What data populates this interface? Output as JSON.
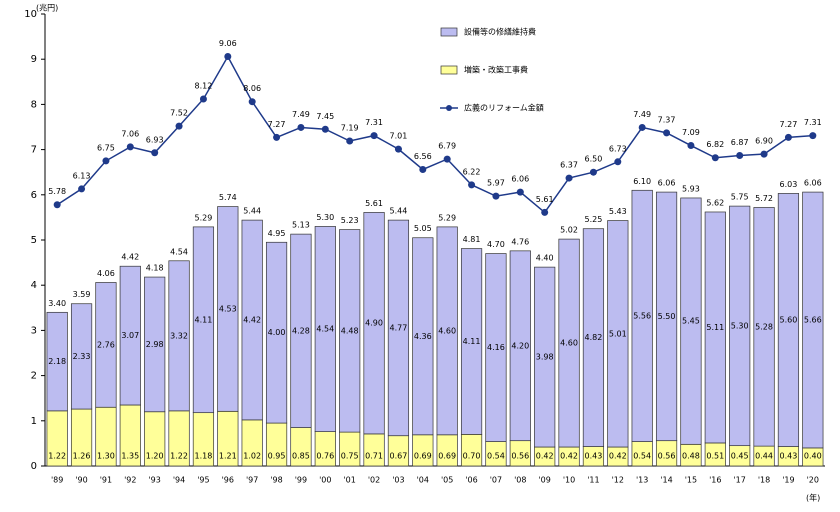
{
  "chart_data": {
    "type": "bar",
    "unit_label": "(兆円)",
    "x_unit_label": "(年)",
    "categories": [
      "'89",
      "'90",
      "'91",
      "'92",
      "'93",
      "'94",
      "'95",
      "'96",
      "'97",
      "'98",
      "'99",
      "'00",
      "'01",
      "'02",
      "'03",
      "'04",
      "'05",
      "'06",
      "'07",
      "'08",
      "'09",
      "'10",
      "'11",
      "'12",
      "'13",
      "'14",
      "'15",
      "'16",
      "'17",
      "'18",
      "'19",
      "'20"
    ],
    "series": [
      {
        "name": "増築・改築工事費",
        "color": "#ffff99",
        "values": [
          1.22,
          1.26,
          1.3,
          1.35,
          1.2,
          1.22,
          1.18,
          1.21,
          1.02,
          0.95,
          0.85,
          0.76,
          0.75,
          0.71,
          0.67,
          0.69,
          0.69,
          0.7,
          0.54,
          0.56,
          0.42,
          0.42,
          0.43,
          0.42,
          0.54,
          0.56,
          0.48,
          0.51,
          0.45,
          0.44,
          0.43,
          0.4
        ],
        "value_labels": [
          "1.22",
          "1.26",
          "1.30",
          "1.35",
          "1.20",
          "1.22",
          "1.18",
          "1.21",
          "1.02",
          "0.95",
          "0.85",
          "0.76",
          "0.75",
          "0.71",
          "0.67",
          "0.69",
          "0.69",
          "0.70",
          "0.54",
          "0.56",
          "0.42",
          "0.42",
          "0.43",
          "0.42",
          "0.54",
          "0.56",
          "0.48",
          "0.51",
          "0.45",
          "0.44",
          "0.43",
          "0.40"
        ]
      },
      {
        "name": "設備等の修繕維持費",
        "color": "#bcbcf0",
        "values": [
          2.18,
          2.33,
          2.76,
          3.07,
          2.98,
          3.32,
          4.11,
          4.53,
          4.42,
          4.0,
          4.28,
          4.54,
          4.48,
          4.9,
          4.77,
          4.36,
          4.6,
          4.11,
          4.16,
          4.2,
          3.98,
          4.6,
          4.82,
          5.01,
          5.56,
          5.5,
          5.45,
          5.11,
          5.3,
          5.28,
          5.6,
          5.66
        ],
        "value_labels": [
          "2.18",
          "2.33",
          "2.76",
          "3.07",
          "2.98",
          "3.32",
          "4.11",
          "4.53",
          "4.42",
          "4.00",
          "4.28",
          "4.54",
          "4.48",
          "4.90",
          "4.77",
          "4.36",
          "4.60",
          "4.11",
          "4.16",
          "4.20",
          "3.98",
          "4.60",
          "4.82",
          "5.01",
          "5.56",
          "5.50",
          "5.45",
          "5.11",
          "5.30",
          "5.28",
          "5.60",
          "5.66"
        ]
      },
      {
        "name": "広義のリフォーム金額",
        "color": "#1f3a8a",
        "type": "line",
        "values": [
          5.78,
          6.13,
          6.75,
          7.06,
          6.93,
          7.52,
          8.12,
          9.06,
          8.06,
          7.27,
          7.49,
          7.45,
          7.19,
          7.31,
          7.01,
          6.56,
          6.79,
          6.22,
          5.97,
          6.06,
          5.61,
          6.37,
          6.5,
          6.73,
          7.49,
          7.37,
          7.09,
          6.82,
          6.87,
          6.9,
          7.27,
          7.31
        ],
        "value_labels": [
          "5.78",
          "6.13",
          "6.75",
          "7.06",
          "6.93",
          "7.52",
          "8.12",
          "9.06",
          "8.06",
          "7.27",
          "7.49",
          "7.45",
          "7.19",
          "7.31",
          "7.01",
          "6.56",
          "6.79",
          "6.22",
          "5.97",
          "6.06",
          "5.61",
          "6.37",
          "6.50",
          "6.73",
          "7.49",
          "7.37",
          "7.09",
          "6.82",
          "6.87",
          "6.90",
          "7.27",
          "7.31"
        ]
      }
    ],
    "totals": [
      3.4,
      3.59,
      4.06,
      4.42,
      4.18,
      4.54,
      5.29,
      5.74,
      5.44,
      4.95,
      5.13,
      5.3,
      5.23,
      5.61,
      5.44,
      5.05,
      5.29,
      4.81,
      4.7,
      4.76,
      4.4,
      5.02,
      5.25,
      5.43,
      6.1,
      6.06,
      5.93,
      5.62,
      5.75,
      5.72,
      6.03,
      6.06
    ],
    "total_labels": [
      "3.40",
      "3.59",
      "4.06",
      "4.42",
      "4.18",
      "4.54",
      "5.29",
      "5.74",
      "5.44",
      "4.95",
      "5.13",
      "5.30",
      "5.23",
      "5.61",
      "5.44",
      "5.05",
      "5.29",
      "4.81",
      "4.70",
      "4.76",
      "4.40",
      "5.02",
      "5.25",
      "5.43",
      "6.10",
      "6.06",
      "5.93",
      "5.62",
      "5.75",
      "5.72",
      "6.03",
      "6.06"
    ],
    "ylim": [
      0,
      10
    ],
    "yticks": [
      0,
      1,
      2,
      3,
      4,
      5,
      6,
      7,
      8,
      9,
      10
    ],
    "stacked": true,
    "legend": "top"
  }
}
